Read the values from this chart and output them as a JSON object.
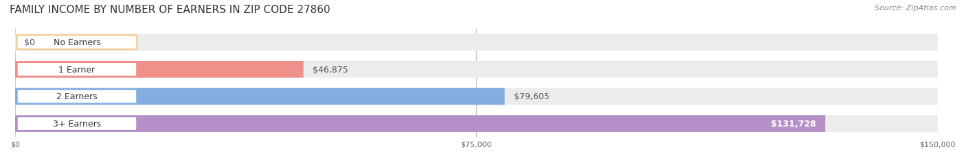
{
  "title": "FAMILY INCOME BY NUMBER OF EARNERS IN ZIP CODE 27860",
  "source": "Source: ZipAtlas.com",
  "categories": [
    "No Earners",
    "1 Earner",
    "2 Earners",
    "3+ Earners"
  ],
  "values": [
    0,
    46875,
    79605,
    131728
  ],
  "labels": [
    "$0",
    "$46,875",
    "$79,605",
    "$131,728"
  ],
  "bar_colors": [
    "#f5c98a",
    "#f0908a",
    "#85aee0",
    "#b58fc8"
  ],
  "bar_bg_color": "#ececec",
  "label_colors": [
    "#555555",
    "#555555",
    "#555555",
    "#ffffff"
  ],
  "xmax": 150000,
  "xticks": [
    0,
    75000,
    150000
  ],
  "xticklabels": [
    "$0",
    "$75,000",
    "$150,000"
  ],
  "title_fontsize": 11,
  "source_fontsize": 8,
  "label_fontsize": 9,
  "category_fontsize": 9,
  "background_color": "#ffffff"
}
